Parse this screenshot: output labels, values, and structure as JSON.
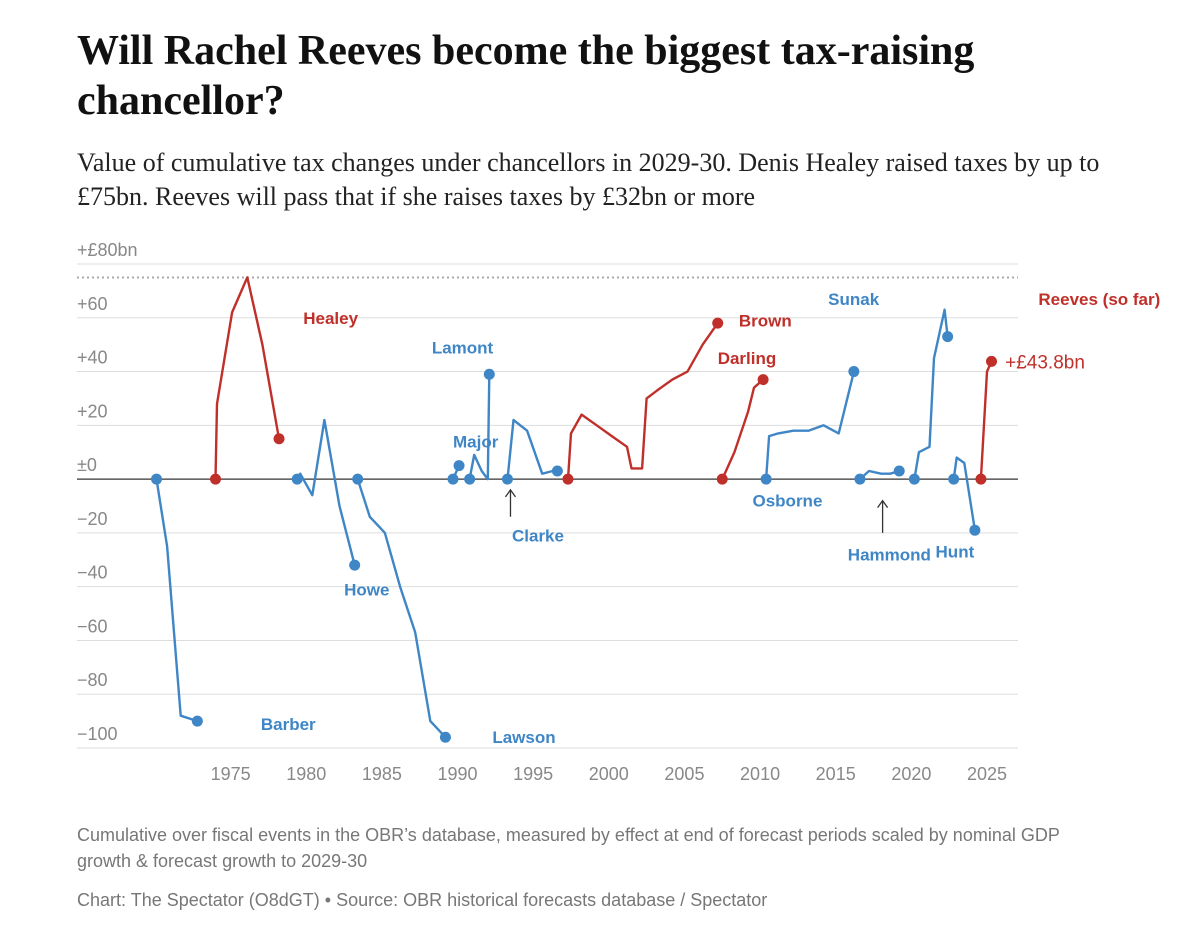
{
  "title": "Will Rachel Reeves become the biggest tax-raising chancellor?",
  "subtitle": "Value of cumulative tax changes under chancellors in 2029-30. Denis Healey raised taxes by up to £75bn. Reeves will pass that if she raises taxes by £32bn or more",
  "note": "Cumulative over fiscal events in the OBR’s database, measured by effect at end of forecast periods scaled by nominal GDP growth & forecast growth to 2029-30",
  "credit_chart": "Chart: The Spectator (O8dGT)",
  "credit_separator": " • ",
  "credit_source": "Source: OBR historical forecasts database / Spectator",
  "colors": {
    "blue": "#3f86c6",
    "red": "#c0302a",
    "axis": "#333333",
    "grid": "#dddddd",
    "tick": "#888888"
  },
  "chart_data": {
    "type": "line",
    "x_unit": "year",
    "xlim": [
      1968,
      2027
    ],
    "ylim": [
      -100,
      80
    ],
    "y_ticks": [
      {
        "value": 80,
        "label": "+£80bn"
      },
      {
        "value": 60,
        "label": "+60"
      },
      {
        "value": 40,
        "label": "+40"
      },
      {
        "value": 20,
        "label": "+20"
      },
      {
        "value": 0,
        "label": "±0"
      },
      {
        "value": -20,
        "label": "−20"
      },
      {
        "value": -40,
        "label": "−40"
      },
      {
        "value": -60,
        "label": "−60"
      },
      {
        "value": -80,
        "label": "−80"
      },
      {
        "value": -100,
        "label": "−100"
      }
    ],
    "x_ticks": [
      1975,
      1980,
      1985,
      1990,
      1995,
      2000,
      2005,
      2010,
      2015,
      2020,
      2025
    ],
    "reference_line": {
      "y": 75,
      "style": "dotted"
    },
    "grid": true,
    "series": [
      {
        "name": "Barber",
        "party": "blue",
        "points": [
          [
            1970.1,
            0
          ],
          [
            1970.8,
            -25
          ],
          [
            1971.7,
            -88
          ],
          [
            1972.8,
            -90
          ]
        ],
        "label_xy": [
          1977,
          -91
        ]
      },
      {
        "name": "Healey",
        "party": "red",
        "points": [
          [
            1974.0,
            0
          ],
          [
            1974.1,
            28
          ],
          [
            1975.1,
            62
          ],
          [
            1976.1,
            75
          ],
          [
            1977.1,
            50
          ],
          [
            1978.2,
            15
          ]
        ],
        "label_xy": [
          1979.8,
          60
        ]
      },
      {
        "name": "Howe",
        "party": "blue",
        "points": [
          [
            1979.4,
            0
          ],
          [
            1979.6,
            2
          ],
          [
            1980.4,
            -6
          ],
          [
            1981.2,
            22
          ],
          [
            1982.2,
            -10
          ],
          [
            1983.2,
            -32
          ]
        ],
        "label_xy": [
          1982.5,
          -41
        ]
      },
      {
        "name": "Lawson",
        "party": "blue",
        "points": [
          [
            1983.4,
            0
          ],
          [
            1984.2,
            -14
          ],
          [
            1985.2,
            -20
          ],
          [
            1986.2,
            -40
          ],
          [
            1987.2,
            -57
          ],
          [
            1988.2,
            -90
          ],
          [
            1989.2,
            -96
          ]
        ],
        "label_xy": [
          1992.3,
          -96
        ]
      },
      {
        "name": "Major",
        "party": "blue",
        "points": [
          [
            1989.7,
            0
          ],
          [
            1990.1,
            5
          ]
        ],
        "label_xy": [
          1989.7,
          14
        ]
      },
      {
        "name": "Lamont",
        "party": "blue",
        "points": [
          [
            1990.8,
            0
          ],
          [
            1991.1,
            9
          ],
          [
            1991.6,
            3
          ],
          [
            1992.0,
            0
          ],
          [
            1992.1,
            39
          ]
        ],
        "label_xy": [
          1988.3,
          49
        ]
      },
      {
        "name": "Clarke",
        "party": "blue",
        "points": [
          [
            1993.3,
            0
          ],
          [
            1993.7,
            22
          ],
          [
            1994.6,
            18
          ],
          [
            1995.6,
            2
          ],
          [
            1996.3,
            3
          ],
          [
            1996.6,
            3
          ]
        ],
        "label_xy": [
          1993.6,
          -21
        ]
      },
      {
        "name": "Brown",
        "party": "red",
        "points": [
          [
            1997.3,
            0
          ],
          [
            1997.5,
            17
          ],
          [
            1998.2,
            24
          ],
          [
            1999.2,
            20
          ],
          [
            2000.2,
            16
          ],
          [
            2001.2,
            12
          ],
          [
            2001.5,
            4
          ],
          [
            2002.2,
            4
          ],
          [
            2002.5,
            30
          ],
          [
            2003.2,
            33
          ],
          [
            2004.2,
            37
          ],
          [
            2005.2,
            40
          ],
          [
            2006.2,
            50
          ],
          [
            2007.2,
            58
          ]
        ],
        "label_xy": [
          2008.6,
          59
        ]
      },
      {
        "name": "Darling",
        "party": "red",
        "points": [
          [
            2007.5,
            0
          ],
          [
            2008.3,
            10
          ],
          [
            2009.2,
            25
          ],
          [
            2009.6,
            34
          ],
          [
            2010.2,
            37
          ]
        ],
        "label_xy": [
          2007.2,
          45
        ]
      },
      {
        "name": "Osborne",
        "party": "blue",
        "points": [
          [
            2010.4,
            0
          ],
          [
            2010.6,
            16
          ],
          [
            2011.2,
            17
          ],
          [
            2012.2,
            18
          ],
          [
            2013.2,
            18
          ],
          [
            2014.2,
            20
          ],
          [
            2015.2,
            17
          ],
          [
            2016.2,
            40
          ]
        ],
        "label_xy": [
          2009.5,
          -8
        ]
      },
      {
        "name": "Hammond",
        "party": "blue",
        "points": [
          [
            2016.6,
            0
          ],
          [
            2017.2,
            3
          ],
          [
            2018.0,
            2
          ],
          [
            2018.6,
            2
          ],
          [
            2019.2,
            3
          ]
        ],
        "label_xy": [
          2015.8,
          -28
        ]
      },
      {
        "name": "Sunak",
        "party": "blue",
        "points": [
          [
            2020.2,
            0
          ],
          [
            2020.5,
            10
          ],
          [
            2021.2,
            12
          ],
          [
            2021.5,
            45
          ],
          [
            2022.2,
            63
          ],
          [
            2022.4,
            53
          ]
        ],
        "label_xy": [
          2014.5,
          67
        ]
      },
      {
        "name": "Hunt",
        "party": "blue",
        "points": [
          [
            2022.8,
            0
          ],
          [
            2023.0,
            8
          ],
          [
            2023.5,
            6
          ],
          [
            2024.2,
            -19
          ]
        ],
        "label_xy": [
          2021.6,
          -27
        ]
      },
      {
        "name": "Reeves (so far)",
        "party": "red",
        "points": [
          [
            2024.6,
            0
          ],
          [
            2025.0,
            40
          ],
          [
            2025.3,
            43.8
          ]
        ],
        "label_xy": [
          2028.4,
          67
        ]
      }
    ],
    "annotations": [
      {
        "text": "+£43.8bn",
        "x": 2026.2,
        "y": 43.8,
        "color": "red"
      },
      {
        "type": "arrow",
        "x": 1993.5,
        "y1": -14,
        "y2": -4
      },
      {
        "type": "arrow",
        "x": 2018.1,
        "y1": -20,
        "y2": -8
      }
    ]
  }
}
